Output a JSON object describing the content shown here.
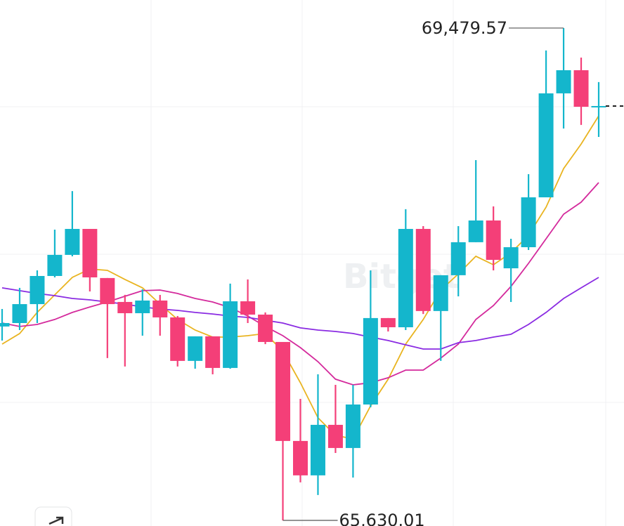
{
  "chart_data": {
    "type": "candlestick",
    "ylim": [
      65586,
      69699
    ],
    "up_color": "#14b6cc",
    "down_color": "#f43f78",
    "watermark": "Bitget",
    "candles": {
      "open": [
        67146,
        67173,
        67321,
        67541,
        67706,
        67909,
        67525,
        67338,
        67250,
        67349,
        67217,
        66877,
        67069,
        66822,
        67343,
        67239,
        67025,
        66251,
        65982,
        66377,
        66196,
        66536,
        67212,
        67140,
        67909,
        67267,
        67547,
        67805,
        67975,
        67601,
        67766,
        68156,
        68969,
        69150,
        68859
      ],
      "high": [
        67283,
        67448,
        67585,
        67903,
        68205,
        67909,
        67525,
        67393,
        67437,
        67393,
        67228,
        67069,
        67069,
        67481,
        67514,
        67256,
        67025,
        66580,
        66772,
        66690,
        66690,
        67585,
        67212,
        68063,
        67931,
        67547,
        67931,
        68447,
        68085,
        67832,
        68337,
        69304,
        69479.57,
        69249,
        69057
      ],
      "low": [
        67036,
        67118,
        67173,
        67530,
        67695,
        67420,
        66899,
        66833,
        67074,
        67074,
        66833,
        66816,
        66772,
        66816,
        67173,
        67008,
        65630.01,
        65927,
        65828,
        66157,
        65965,
        66514,
        67107,
        67118,
        67244,
        66877,
        67382,
        67805,
        67585,
        67338,
        67744,
        68156,
        68694,
        68722,
        68628
      ],
      "close": [
        67173,
        67321,
        67541,
        67706,
        67909,
        67530,
        67321,
        67250,
        67349,
        67217,
        66877,
        67069,
        66822,
        67343,
        67239,
        67025,
        66251,
        65982,
        66377,
        66196,
        66536,
        67212,
        67140,
        67909,
        67267,
        67547,
        67805,
        67975,
        67667,
        67766,
        68156,
        68969,
        69150,
        68864,
        68870
      ]
    },
    "ma_series": [
      {
        "color": "#e9b420",
        "values": [
          67008,
          67091,
          67256,
          67393,
          67530,
          67596,
          67585,
          67514,
          67448,
          67321,
          67201,
          67118,
          67063,
          67063,
          67074,
          67091,
          66953,
          66706,
          66432,
          66295,
          66267,
          66525,
          66734,
          67008,
          67201,
          67431,
          67557,
          67695,
          67629,
          67722,
          67859,
          68079,
          68381,
          68573,
          68793
        ]
      },
      {
        "color": "#d42a9c",
        "values": [
          67173,
          67146,
          67162,
          67201,
          67256,
          67299,
          67338,
          67382,
          67426,
          67431,
          67404,
          67365,
          67338,
          67294,
          67228,
          67146,
          67074,
          66981,
          66871,
          66734,
          66690,
          66706,
          66745,
          66805,
          66805,
          66899,
          67008,
          67201,
          67310,
          67459,
          67640,
          67832,
          68024,
          68118,
          68271
        ]
      },
      {
        "color": "#8a2be2",
        "values": [
          67448,
          67426,
          67404,
          67387,
          67365,
          67354,
          67338,
          67321,
          67299,
          67283,
          67272,
          67256,
          67244,
          67228,
          67217,
          67195,
          67173,
          67135,
          67118,
          67107,
          67091,
          67063,
          67036,
          67003,
          66970,
          66970,
          67019,
          67036,
          67063,
          67085,
          67162,
          67256,
          67365,
          67448,
          67530
        ]
      }
    ],
    "annotations": [
      {
        "text": "69,479.57",
        "value": 69479.57
      },
      {
        "text": "65,630.01",
        "value": 65630.01
      }
    ]
  }
}
